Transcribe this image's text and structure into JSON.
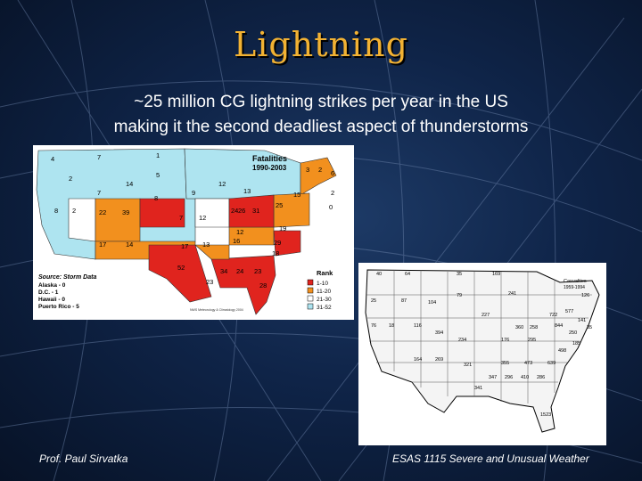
{
  "slide": {
    "title": "Lightning",
    "subtitle_line1": "~25 million CG lightning strikes per year in the US",
    "subtitle_line2": "making it the second deadliest aspect of thunderstorms",
    "footer_left": "Prof. Paul Sirvatka",
    "footer_right": "ESAS 1115 Severe and Unusual Weather"
  },
  "map_fatalities": {
    "title": "Fatalities",
    "period": "1990-2003",
    "source": "Source: Storm Data",
    "other_areas": [
      "Alaska - 0",
      "D.C. - 1",
      "Hawaii - 0",
      "Puerto Rico - 5"
    ],
    "credit": "NWS Meteorology & Climatology 2004",
    "rank_title": "Rank",
    "rank_legend": [
      {
        "label": "1-10",
        "color": "#e0241e"
      },
      {
        "label": "11-20",
        "color": "#f2901e"
      },
      {
        "label": "21-30",
        "color": "#ffffff"
      },
      {
        "label": "31-52",
        "color": "#aee4f0"
      }
    ],
    "state_labels": [
      "4",
      "7",
      "1",
      "5",
      "2",
      "14",
      "9",
      "12",
      "13",
      "15",
      "7",
      "8",
      "8",
      "2",
      "22",
      "39",
      "7",
      "12",
      "24",
      "26",
      "31",
      "25",
      "17",
      "14",
      "17",
      "13",
      "16",
      "12",
      "29",
      "52",
      "34",
      "23",
      "24",
      "23",
      "28",
      "19",
      "18",
      "3",
      "2",
      "6",
      "2",
      "0"
    ]
  },
  "map_casualties": {
    "title": "Casualties",
    "period": "1959-1994",
    "state_labels": [
      "40",
      "64",
      "35",
      "169",
      "25",
      "87",
      "79",
      "241",
      "126",
      "104",
      "227",
      "722",
      "577",
      "76",
      "18",
      "116",
      "394",
      "360",
      "258",
      "844",
      "250",
      "234",
      "176",
      "295",
      "185",
      "35",
      "164",
      "269",
      "321",
      "355",
      "473",
      "639",
      "347",
      "341",
      "1523",
      "296",
      "410",
      "286",
      "498",
      "141"
    ]
  }
}
